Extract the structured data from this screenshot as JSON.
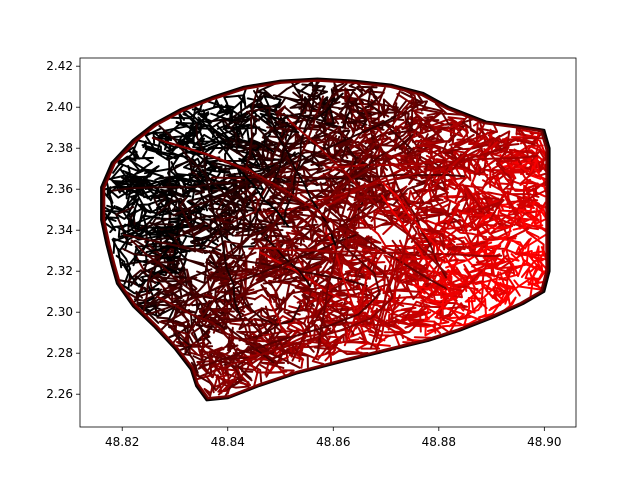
{
  "chart_data": {
    "type": "line",
    "title": "",
    "xlabel": "",
    "ylabel": "",
    "xlim": [
      48.812,
      48.906
    ],
    "ylim": [
      2.244,
      2.424
    ],
    "x_ticks": [
      48.82,
      48.84,
      48.86,
      48.88,
      48.9
    ],
    "x_tick_labels": [
      "48.82",
      "48.84",
      "48.86",
      "48.88",
      "48.90"
    ],
    "y_ticks": [
      2.26,
      2.28,
      2.3,
      2.32,
      2.34,
      2.36,
      2.38,
      2.4,
      2.42
    ],
    "y_tick_labels": [
      "2.26",
      "2.28",
      "2.30",
      "2.32",
      "2.34",
      "2.36",
      "2.38",
      "2.40",
      "2.42"
    ],
    "grid": false,
    "legend": "none",
    "color_scale": [
      "#000000",
      "#ff0000"
    ],
    "outline": [
      [
        48.816,
        2.361
      ],
      [
        48.818,
        2.373
      ],
      [
        48.822,
        2.384
      ],
      [
        48.826,
        2.392
      ],
      [
        48.831,
        2.399
      ],
      [
        48.837,
        2.405
      ],
      [
        48.843,
        2.41
      ],
      [
        48.85,
        2.413
      ],
      [
        48.857,
        2.414
      ],
      [
        48.864,
        2.413
      ],
      [
        48.871,
        2.411
      ],
      [
        48.877,
        2.407
      ],
      [
        48.882,
        2.4
      ],
      [
        48.889,
        2.393
      ],
      [
        48.895,
        2.391
      ],
      [
        48.9,
        2.389
      ],
      [
        48.901,
        2.38
      ],
      [
        48.901,
        2.36
      ],
      [
        48.901,
        2.34
      ],
      [
        48.901,
        2.32
      ],
      [
        48.9,
        2.31
      ],
      [
        48.896,
        2.304
      ],
      [
        48.89,
        2.297
      ],
      [
        48.884,
        2.291
      ],
      [
        48.878,
        2.286
      ],
      [
        48.87,
        2.281
      ],
      [
        48.862,
        2.276
      ],
      [
        48.853,
        2.27
      ],
      [
        48.846,
        2.264
      ],
      [
        48.84,
        2.258
      ],
      [
        48.836,
        2.257
      ],
      [
        48.834,
        2.264
      ],
      [
        48.833,
        2.272
      ],
      [
        48.83,
        2.282
      ],
      [
        48.826,
        2.293
      ],
      [
        48.822,
        2.303
      ],
      [
        48.819,
        2.314
      ],
      [
        48.818,
        2.323
      ],
      [
        48.817,
        2.333
      ],
      [
        48.816,
        2.345
      ],
      [
        48.816,
        2.361
      ]
    ],
    "river": [
      [
        48.827,
        2.384
      ],
      [
        48.835,
        2.378
      ],
      [
        48.843,
        2.37
      ],
      [
        48.85,
        2.36
      ],
      [
        48.856,
        2.35
      ],
      [
        48.86,
        2.342
      ],
      [
        48.862,
        2.334
      ],
      [
        48.865,
        2.327
      ],
      [
        48.869,
        2.318
      ],
      [
        48.87,
        2.308
      ],
      [
        48.866,
        2.298
      ],
      [
        48.86,
        2.292
      ],
      [
        48.852,
        2.286
      ],
      [
        48.846,
        2.281
      ],
      [
        48.84,
        2.276
      ],
      [
        48.836,
        2.272
      ]
    ],
    "edge_count": 1400
  }
}
